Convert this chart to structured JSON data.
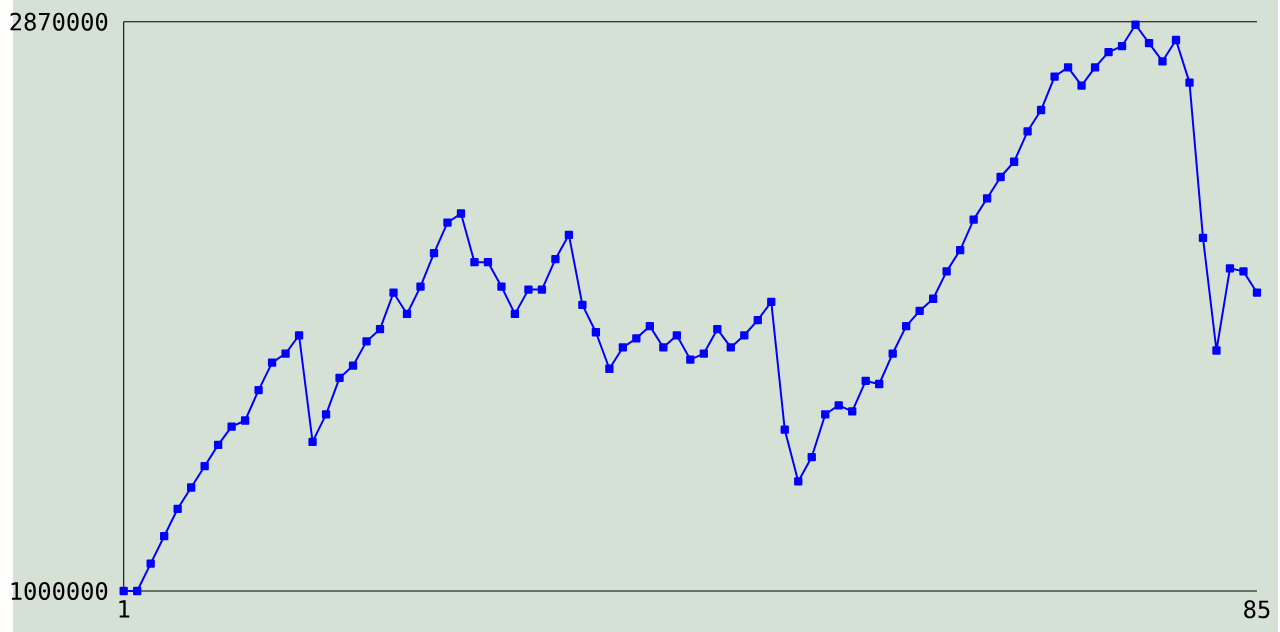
{
  "chart_data": {
    "type": "line",
    "x": [
      1,
      2,
      3,
      4,
      5,
      6,
      7,
      8,
      9,
      10,
      11,
      12,
      13,
      14,
      15,
      16,
      17,
      18,
      19,
      20,
      21,
      22,
      23,
      24,
      25,
      26,
      27,
      28,
      29,
      30,
      31,
      32,
      33,
      34,
      35,
      36,
      37,
      38,
      39,
      40,
      41,
      42,
      43,
      44,
      45,
      46,
      47,
      48,
      49,
      50,
      51,
      52,
      53,
      54,
      55,
      56,
      57,
      58,
      59,
      60,
      61,
      62,
      63,
      64,
      65,
      66,
      67,
      68,
      69,
      70,
      71,
      72,
      73,
      74,
      75,
      76,
      77,
      78,
      79,
      80,
      81,
      82,
      83,
      84,
      85
    ],
    "series": [
      {
        "color": "#0000ff",
        "values": [
          1000000,
          1000000,
          1090000,
          1180000,
          1270000,
          1340000,
          1410000,
          1480000,
          1540000,
          1560000,
          1660000,
          1750000,
          1780000,
          1840000,
          1490000,
          1580000,
          1700000,
          1740000,
          1820000,
          1860000,
          1980000,
          1910000,
          2000000,
          2110000,
          2210000,
          2240000,
          2080000,
          2080000,
          2000000,
          1910000,
          1990000,
          1990000,
          2090000,
          2170000,
          1940000,
          1850000,
          1730000,
          1800000,
          1830000,
          1870000,
          1800000,
          1840000,
          1760000,
          1780000,
          1860000,
          1800000,
          1840000,
          1890000,
          1950000,
          1530000,
          1360000,
          1440000,
          1580000,
          1610000,
          1590000,
          1690000,
          1680000,
          1780000,
          1870000,
          1920000,
          1960000,
          2050000,
          2120000,
          2220000,
          2290000,
          2360000,
          2410000,
          2510000,
          2580000,
          2690000,
          2720000,
          2660000,
          2720000,
          2770000,
          2790000,
          2860000,
          2800000,
          2740000,
          2810000,
          2670000,
          2160000,
          1790000,
          2060000,
          2050000,
          1980000
        ]
      }
    ],
    "xlim": [
      1,
      85
    ],
    "xticks": [
      1,
      85
    ],
    "ylim": [
      1000000,
      2870000
    ],
    "yticks": [
      1000000,
      2870000
    ],
    "marker": "square",
    "line_style": "solid",
    "grid": false
  }
}
